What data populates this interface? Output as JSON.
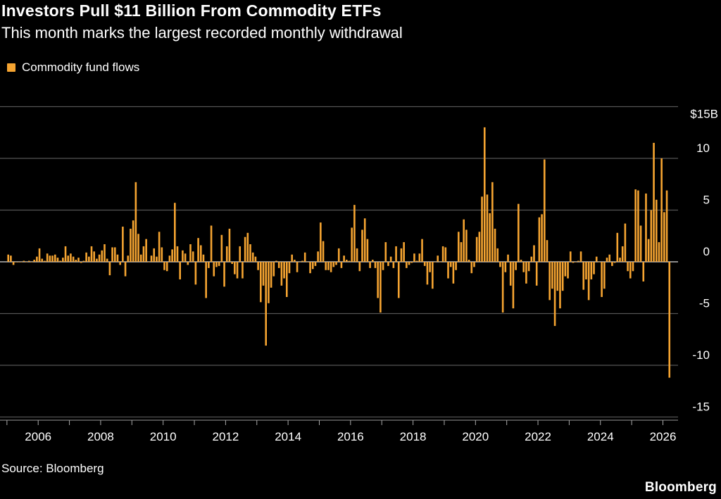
{
  "title": "Investors Pull $11 Billion From Commodity ETFs",
  "subtitle": "This month marks the largest recorded monthly withdrawal",
  "source": "Source: Bloomberg",
  "logo": "Bloomberg",
  "colors": {
    "bar": "#f5a431",
    "background": "#000000",
    "grid": "#555555"
  },
  "chart_data": {
    "type": "bar",
    "frequency": "monthly",
    "legend": {
      "label": "Commodity fund flows",
      "placement": "top-left"
    },
    "ylim": [
      -15,
      15
    ],
    "y_ticks": [
      15,
      10,
      5,
      0,
      -5,
      -10,
      -15
    ],
    "y_tick_labels": [
      "$15B",
      "10",
      "5",
      "0",
      "-5",
      "-10",
      "-15"
    ],
    "x_tick_labels": [
      "2006",
      "2008",
      "2010",
      "2012",
      "2014",
      "2016",
      "2018",
      "2020",
      "2022",
      "2024",
      "2026"
    ],
    "grid": true,
    "series": [
      {
        "name": "Commodity fund flows",
        "unit": "$B",
        "values_by_year": [
          {
            "year": 2005,
            "values": [
              0.7,
              0.6,
              -0.3,
              0,
              0,
              0,
              0.1,
              0,
              0.1,
              0,
              0.2,
              0.5
            ]
          },
          {
            "year": 2006,
            "values": [
              1.3,
              0.3,
              0.1,
              0.8,
              0.6,
              0.6,
              0.7,
              0.4,
              0.1,
              0.4,
              1.5,
              0.6
            ]
          },
          {
            "year": 2007,
            "values": [
              0.8,
              0.5,
              0.2,
              0.4,
              -0.1,
              0.1,
              0.9,
              0.5,
              1.5,
              1.0,
              0.3,
              0.7
            ]
          },
          {
            "year": 2008,
            "values": [
              1.1,
              1.7,
              0.3,
              -1.3,
              1.4,
              1.4,
              0.7,
              -0.3,
              3.4,
              -1.4,
              0.6,
              3.2
            ]
          },
          {
            "year": 2009,
            "values": [
              4.0,
              7.7,
              2.7,
              0.7,
              1.5,
              2.2,
              0,
              0.6,
              1.3,
              0.5,
              2.9,
              1.4
            ]
          },
          {
            "year": 2010,
            "values": [
              -0.8,
              -0.9,
              0.6,
              1.2,
              5.7,
              1.5,
              -1.7,
              1.1,
              0.8,
              -0.3,
              1.7,
              1.0
            ]
          },
          {
            "year": 2011,
            "values": [
              -2.2,
              2.3,
              1.6,
              0.7,
              -3.5,
              -0.6,
              3.5,
              -1.4,
              -0.5,
              -0.4,
              2.6,
              -2.4
            ]
          },
          {
            "year": 2012,
            "values": [
              1.5,
              3.2,
              -0.2,
              -1.2,
              -1.6,
              1.5,
              -1.6,
              2.4,
              2.8,
              1.7,
              0.9,
              0.5
            ]
          },
          {
            "year": 2013,
            "values": [
              -0.8,
              -3.9,
              -2.3,
              -8.1,
              -4.0,
              -2.5,
              -1.4,
              0.1,
              -0.6,
              -2.3,
              -1.6,
              -3.4
            ]
          },
          {
            "year": 2014,
            "values": [
              -1.1,
              0.7,
              0.2,
              -1.0,
              0,
              0.1,
              0.9,
              0,
              -1.1,
              -0.7,
              -0.4,
              1.0
            ]
          },
          {
            "year": 2015,
            "values": [
              3.8,
              2.0,
              -0.8,
              -0.8,
              -1.0,
              -0.5,
              -0.3,
              1.3,
              -0.6,
              0.6,
              0.2,
              0.1
            ]
          },
          {
            "year": 2016,
            "values": [
              3.3,
              5.5,
              1.3,
              -0.9,
              3.1,
              4.2,
              2.2,
              -0.6,
              0.2,
              -0.6,
              -3.5,
              -4.9
            ]
          },
          {
            "year": 2017,
            "values": [
              -0.8,
              1.9,
              -0.4,
              0.5,
              -0.6,
              1.5,
              -3.5,
              1.3,
              1.9,
              -0.6,
              -0.3,
              -0.1
            ]
          },
          {
            "year": 2018,
            "values": [
              0.8,
              0.1,
              0.8,
              2.2,
              -0.4,
              -2.2,
              -1.0,
              -2.6,
              0,
              0.6,
              0,
              1.5
            ]
          },
          {
            "year": 2019,
            "values": [
              1.4,
              -1.6,
              -0.5,
              -2.1,
              -0.8,
              2.9,
              1.9,
              4.1,
              3.1,
              0.2,
              -1.1,
              -0.5
            ]
          },
          {
            "year": 2020,
            "values": [
              2.4,
              2.9,
              6.3,
              13.0,
              6.5,
              4.7,
              7.7,
              3.2,
              1.3,
              -0.5,
              -4.9,
              -1.0
            ]
          },
          {
            "year": 2021,
            "values": [
              0.7,
              -2.3,
              -4.5,
              -0.8,
              5.6,
              0.2,
              -1.0,
              -2.1,
              -0.9,
              0.5,
              1.6,
              -2.3
            ]
          },
          {
            "year": 2022,
            "values": [
              4.3,
              4.6,
              9.9,
              2.1,
              -3.7,
              -2.6,
              -6.2,
              -2.8,
              -4.5,
              -2.8,
              -1.4,
              -1.6
            ]
          },
          {
            "year": 2023,
            "values": [
              1.0,
              -0.1,
              0,
              0.1,
              1.0,
              -2.7,
              -1.7,
              -3.7,
              -1.7,
              -1.2,
              0.5,
              0
            ]
          },
          {
            "year": 2024,
            "values": [
              -3.4,
              -2.6,
              0.4,
              0.7,
              -0.4,
              -0.1,
              2.8,
              0.4,
              1.5,
              3.7,
              -0.9,
              -1.6
            ]
          },
          {
            "year": 2025,
            "values": [
              -0.9,
              7.0,
              6.9,
              3.5,
              -1.9,
              6.6,
              2.2,
              5.0,
              11.5,
              6.0,
              1.9,
              10.0
            ]
          },
          {
            "year": 2026,
            "values": [
              4.8,
              6.9,
              -11.2
            ]
          }
        ]
      }
    ]
  }
}
